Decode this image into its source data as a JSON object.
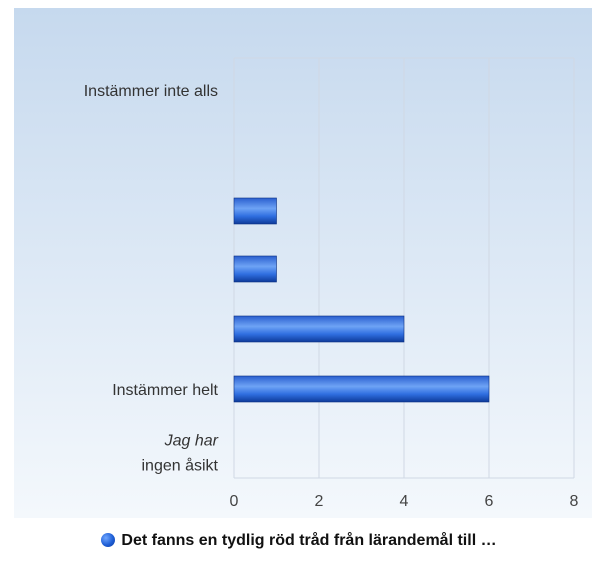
{
  "chart_data": {
    "type": "bar",
    "orientation": "horizontal",
    "categories": [
      "Instämmer  inte alls",
      "",
      "",
      "",
      "Instämmer helt",
      "Jag har ingen åsikt"
    ],
    "category_lines": [
      [
        "Instämmer  inte alls"
      ],
      [
        ""
      ],
      [
        ""
      ],
      [
        ""
      ],
      [
        "Instämmer helt"
      ],
      [
        "Jag har",
        "ingen åsikt"
      ]
    ],
    "series": [
      {
        "name": "Det fanns en tydlig röd tråd från lärandemål till …",
        "values": [
          0,
          1,
          1,
          4,
          6,
          0
        ]
      }
    ],
    "xlim": [
      0,
      8
    ],
    "xticks": [
      "0",
      "2",
      "4",
      "6",
      "8"
    ],
    "grid": true,
    "legend_position": "bottom",
    "colors": {
      "bar": "#1f5fd6",
      "bar_dark": "#0b3a9e",
      "bar_light": "#6fa6ff",
      "grid": "#d0d8e4"
    }
  }
}
